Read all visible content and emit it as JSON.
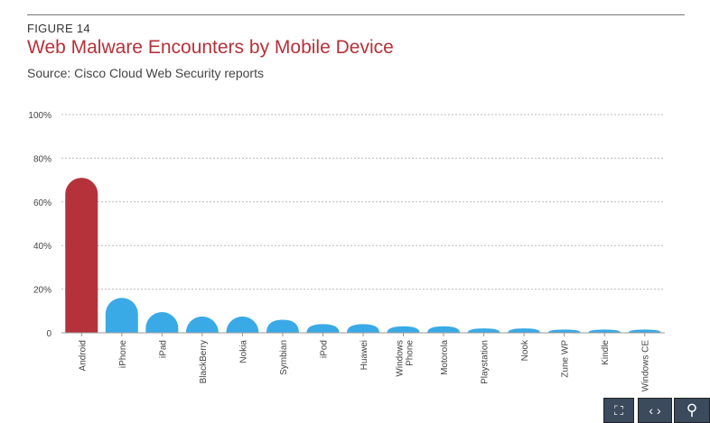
{
  "figure_label": "FIGURE 14",
  "title": "Web Malware Encounters by Mobile Device",
  "source": "Source: Cisco Cloud Web Security reports",
  "chart_data": {
    "type": "bar",
    "categories": [
      "Android",
      "iPhone",
      "iPad",
      "BlackBerry",
      "Nokia",
      "Symbian",
      "iPod",
      "Huawei",
      "Windows Phone",
      "Motorola",
      "Playstation",
      "Nook",
      "Zune WP",
      "Kindle",
      "Windows CE"
    ],
    "values": [
      71,
      16,
      9.5,
      7.5,
      7.5,
      6,
      4,
      4,
      3,
      3,
      2,
      2,
      1.5,
      1.5,
      1.5
    ],
    "ylim": [
      0,
      100
    ],
    "yticks": [
      "0",
      "20%",
      "40%",
      "60%",
      "80%",
      "100%"
    ],
    "grid": true,
    "colors": {
      "highlight": "#b5323a",
      "default": "#3aaae6"
    }
  },
  "toolbar": {
    "fit_icon": "fit-screen-icon",
    "nav_icon": "prev-next-icon",
    "zoom_icon": "zoom-out-icon"
  }
}
